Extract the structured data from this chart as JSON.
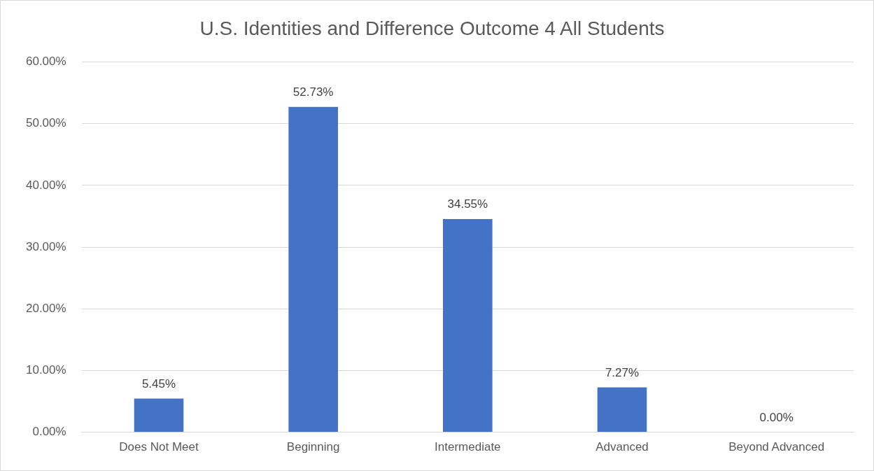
{
  "chart_data": {
    "type": "bar",
    "title": "U.S. Identities and Difference Outcome 4 All Students",
    "categories": [
      "Does Not Meet",
      "Beginning",
      "Intermediate",
      "Advanced",
      "Beyond Advanced"
    ],
    "values": [
      5.45,
      52.73,
      34.55,
      7.27,
      0
    ],
    "value_labels": [
      "5.45%",
      "52.73%",
      "34.55%",
      "7.27%",
      "0.00%"
    ],
    "color": "#4472c4",
    "ylim": [
      0,
      60
    ],
    "yticks": [
      {
        "value": 0,
        "label": "0.00%"
      },
      {
        "value": 10,
        "label": "10.00%"
      },
      {
        "value": 20,
        "label": "20.00%"
      },
      {
        "value": 30,
        "label": "30.00%"
      },
      {
        "value": 40,
        "label": "40.00%"
      },
      {
        "value": 50,
        "label": "50.00%"
      },
      {
        "value": 60,
        "label": "60.00%"
      }
    ],
    "grid": "y",
    "legend": false
  }
}
